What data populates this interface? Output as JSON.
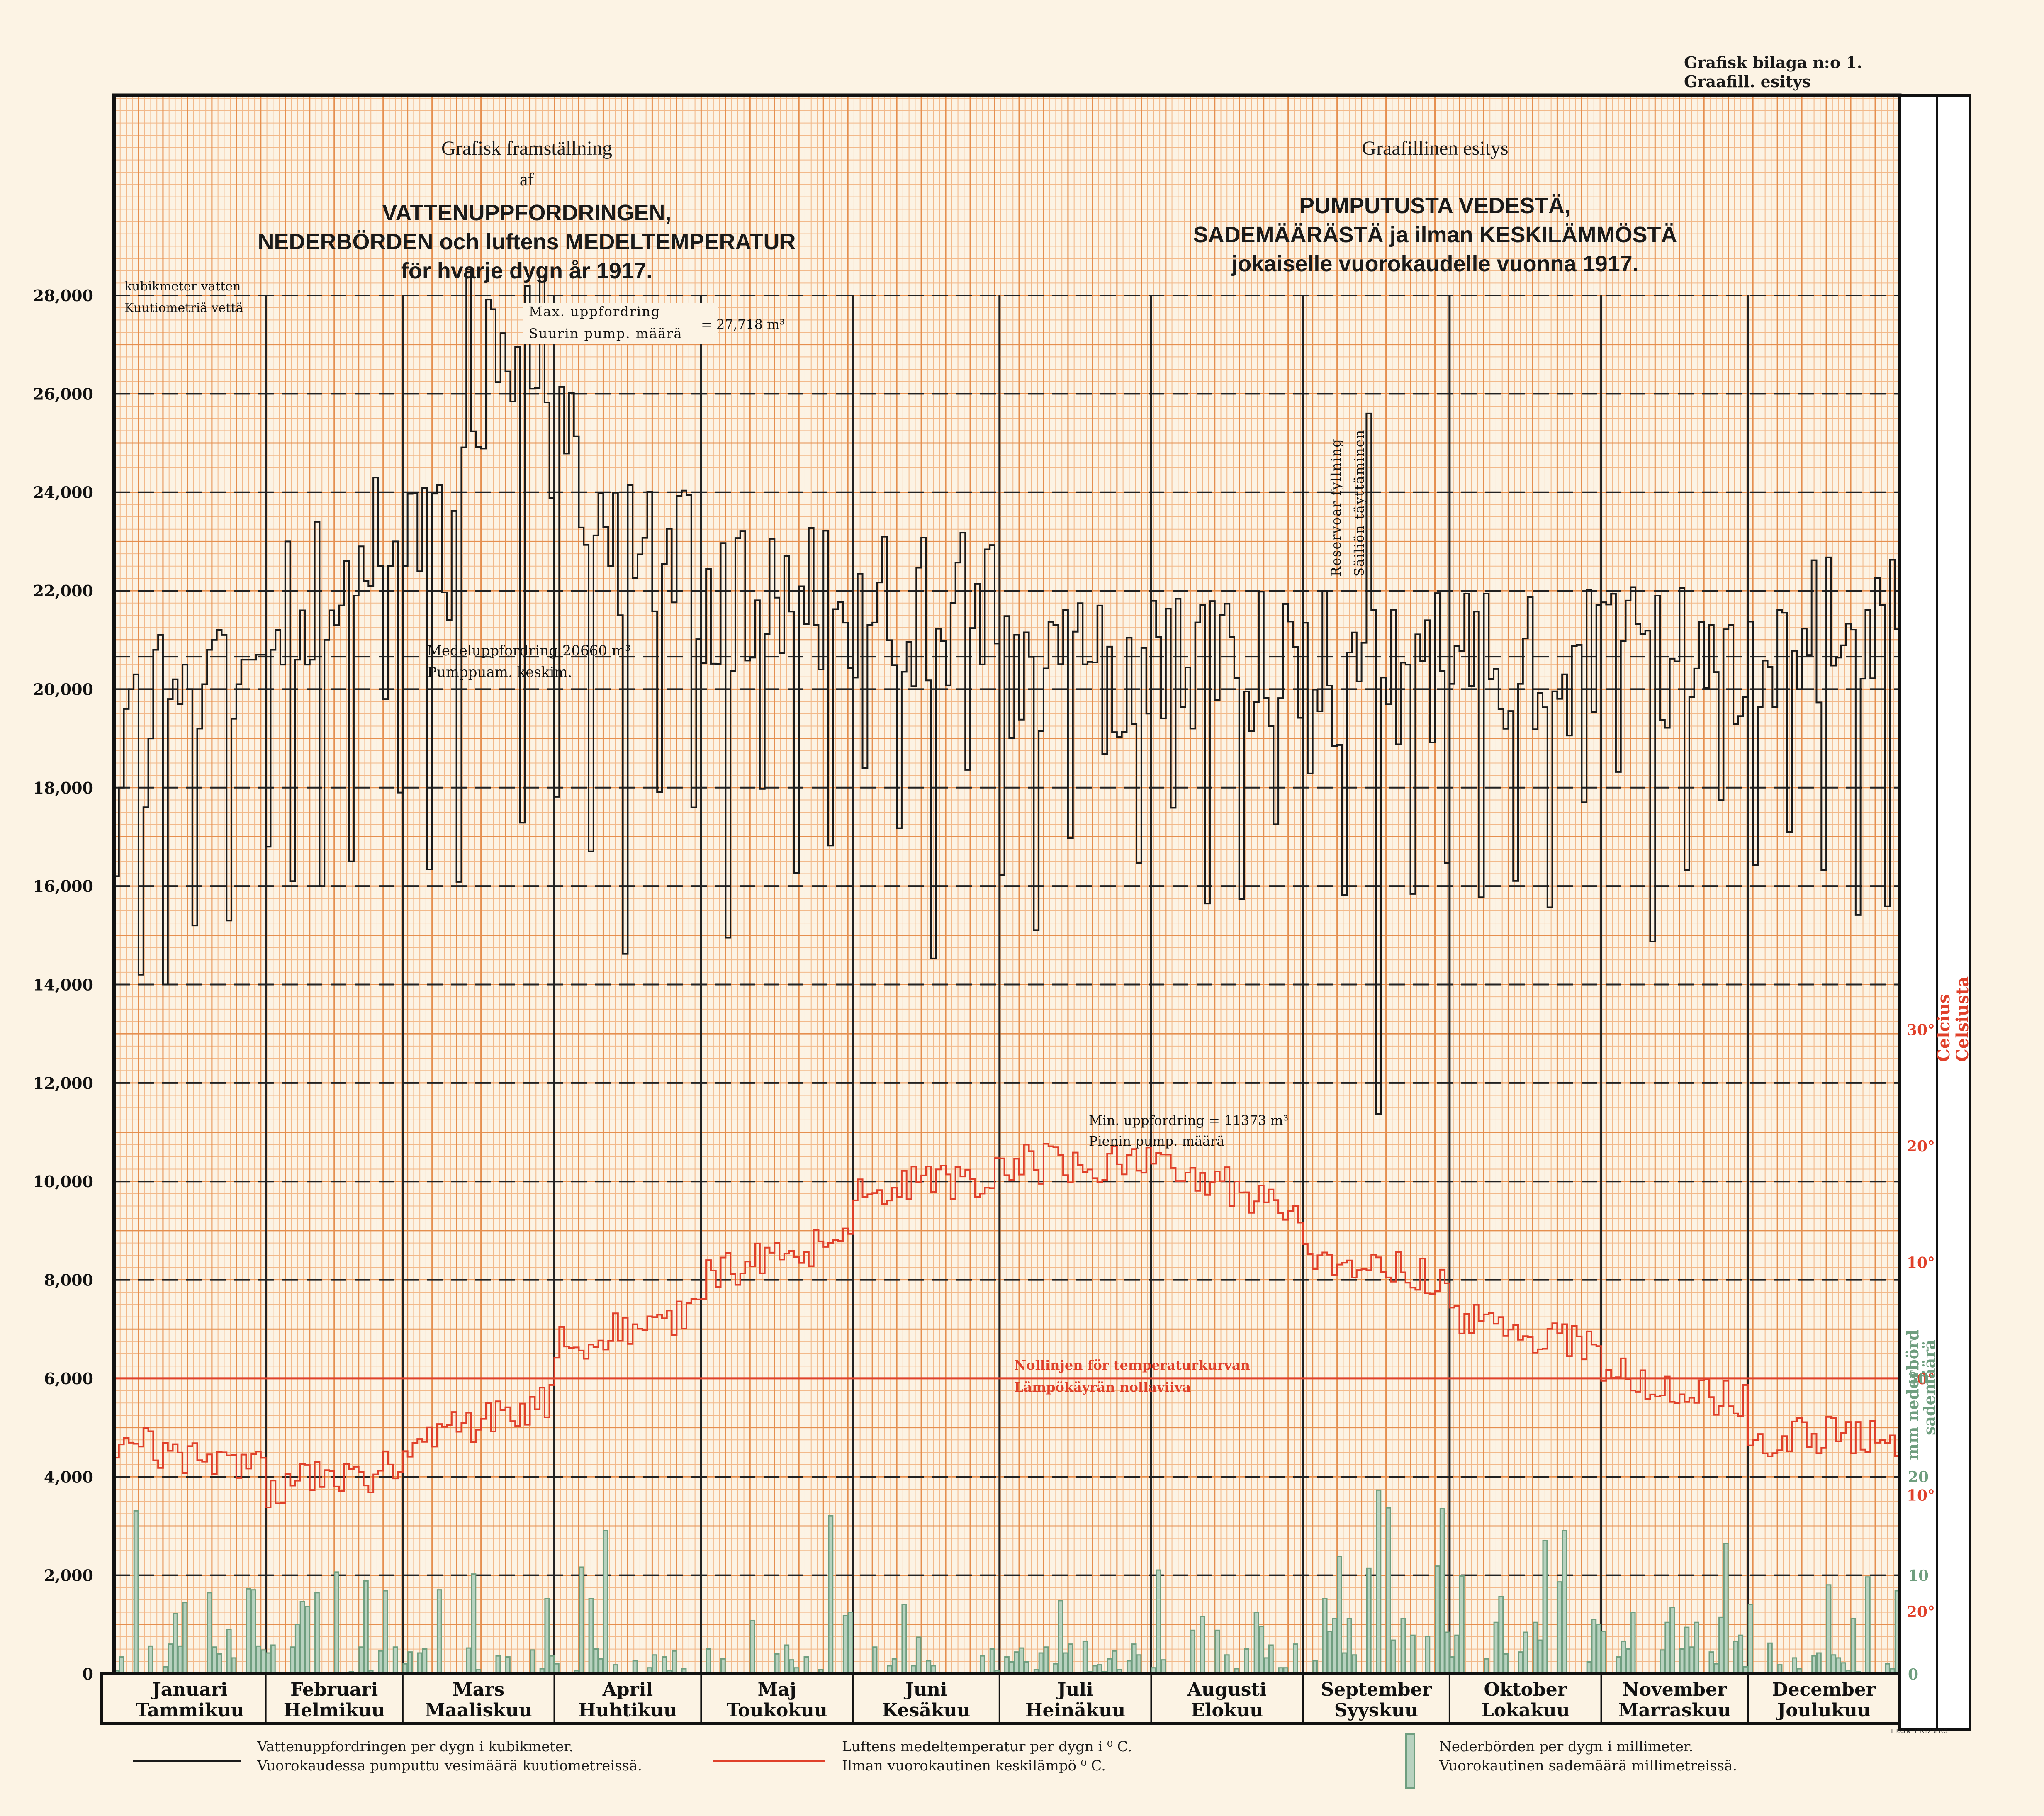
{
  "corner": {
    "line1": "Grafisk bilaga n:o 1.",
    "line2": "Graafill. esitys"
  },
  "title_sv": {
    "line1": "Grafisk framställning",
    "line2": "af",
    "main": [
      "VATTENUPPFORDRINGEN,",
      "NEDERBÖRDEN och luftens MEDELTEMPERATUR",
      "för hvarje dygn år 1917."
    ]
  },
  "title_fi": {
    "line1": "Graafillinen esitys",
    "main": [
      "PUMPUTUSTA VEDESTÄ,",
      "SADEMÄÄRÄSTÄ ja ilman KESKILÄMMÖSTÄ",
      "jokaiselle vuorokaudelle vuonna 1917."
    ]
  },
  "colors": {
    "water": "#1a1a1a",
    "temperature": "#e0402a",
    "precipitation": "#6f9e7f",
    "grid_minor": "#f2b98a",
    "grid_major": "#e58f4f",
    "background": "#fcf3e4"
  },
  "chart_data": {
    "type": "line",
    "x_unit": "day of year 1917",
    "months": [
      {
        "sv": "Januari",
        "fi": "Tammikuu",
        "days": 31
      },
      {
        "sv": "Februari",
        "fi": "Helmikuu",
        "days": 28
      },
      {
        "sv": "Mars",
        "fi": "Maaliskuu",
        "days": 31
      },
      {
        "sv": "April",
        "fi": "Huhtikuu",
        "days": 30
      },
      {
        "sv": "Maj",
        "fi": "Toukokuu",
        "days": 31
      },
      {
        "sv": "Juni",
        "fi": "Kesäkuu",
        "days": 30
      },
      {
        "sv": "Juli",
        "fi": "Heinäkuu",
        "days": 31
      },
      {
        "sv": "Augusti",
        "fi": "Elokuu",
        "days": 31
      },
      {
        "sv": "September",
        "fi": "Syyskuu",
        "days": 30
      },
      {
        "sv": "Oktober",
        "fi": "Lokakuu",
        "days": 31
      },
      {
        "sv": "November",
        "fi": "Marraskuu",
        "days": 30
      },
      {
        "sv": "December",
        "fi": "Joulukuu",
        "days": 31
      }
    ],
    "y_left": {
      "label_sv": "kubikmeter vatten",
      "label_fi": "Kuutiometriä vettä",
      "range": [
        0,
        28000
      ],
      "ticks": [
        "0",
        "2,000",
        "4,000",
        "6,000",
        "8,000",
        "10,000",
        "12,000",
        "14,000",
        "16,000",
        "18,000",
        "20,000",
        "22,000",
        "24,000",
        "26,000",
        "28,000"
      ]
    },
    "y_temp": {
      "label_sv": "Celcius",
      "label_fi": "Celsiusta",
      "range": [
        -20,
        30
      ],
      "ticks": [
        {
          "v": 30,
          "t": "30°"
        },
        {
          "v": 20,
          "t": "20°"
        },
        {
          "v": 10,
          "t": "10°"
        },
        {
          "v": 0,
          "t": "0°"
        },
        {
          "v": -10,
          "t": "10°"
        },
        {
          "v": -20,
          "t": "20°"
        }
      ]
    },
    "y_precip": {
      "label_sv": "mm nederbörd",
      "label_fi": "sademäärä",
      "range": [
        0,
        40
      ],
      "ticks": [
        {
          "v": 0,
          "t": "0"
        },
        {
          "v": 10,
          "t": "10"
        },
        {
          "v": 20,
          "t": "20"
        },
        {
          "v": 30,
          "t": "30"
        }
      ]
    },
    "annotations": {
      "max_sv": "Max. uppfordring",
      "max_fi": "Suurin pump. määrä",
      "max_value": "= 27,718 m³",
      "max": 27718,
      "mean_sv": "Medeluppfordring 20660 m³",
      "mean_fi": "Pumppuam. keskim.",
      "mean": 20660,
      "min_sv": "Min. uppfordring = 11373 m³",
      "min_fi": "Pienin pump. määrä",
      "min": 11373,
      "reservoir_sv": "Reservoar fyllning",
      "reservoir_fi": "Säiliön täyttäminen",
      "zero_sv": "Nollinjen för temperaturkurvan",
      "zero_fi": "Lämpökäyrän nollaviiva"
    },
    "series": [
      {
        "name": "Vattenuppfordringen per dygn i kubikmeter.",
        "key": "water",
        "unit": "m³",
        "values": [
          16200,
          18000,
          19600,
          20000,
          20300,
          14200,
          17600,
          19000,
          20800,
          21100,
          14000,
          19800,
          20200,
          19700,
          20500,
          20000,
          15200,
          19200,
          20100,
          20800,
          21000,
          21200,
          21100,
          15300,
          19400,
          20100,
          20600,
          20600,
          20600,
          20700,
          20700,
          16800,
          20800,
          21200,
          20500,
          23000,
          16100,
          20600,
          21600,
          20500,
          20600,
          23400,
          16000,
          21000,
          21600,
          21300,
          21700,
          22600,
          16500,
          21900,
          22900,
          22200,
          22100,
          24300,
          22500,
          19800,
          22500,
          23000,
          17900,
          22500
        ],
        "annual_labels": ""
      },
      {
        "name": "Luftens medeltemperatur per dygn i °C.",
        "key": "temp",
        "unit": "°C"
      },
      {
        "name": "Nederbörden per dygn i millimeter.",
        "key": "precip",
        "unit": "mm"
      }
    ]
  },
  "legend": [
    {
      "key": "water",
      "sv": "Vattenuppfordringen per dygn i kubikmeter.",
      "fi": "Vuorokaudessa pumputtu vesimäärä kuutiometreissä."
    },
    {
      "key": "temp",
      "sv": "Luftens medeltemperatur per dygn i ⁰ C.",
      "fi": "Ilman vuorokautinen keskilämpö ⁰ C."
    },
    {
      "key": "precip",
      "sv": "Nederbörden per dygn i millimeter.",
      "fi": "Vuorokautinen sademäärä millimetreissä."
    }
  ],
  "printer": "LILIUS & HERTZBERG"
}
